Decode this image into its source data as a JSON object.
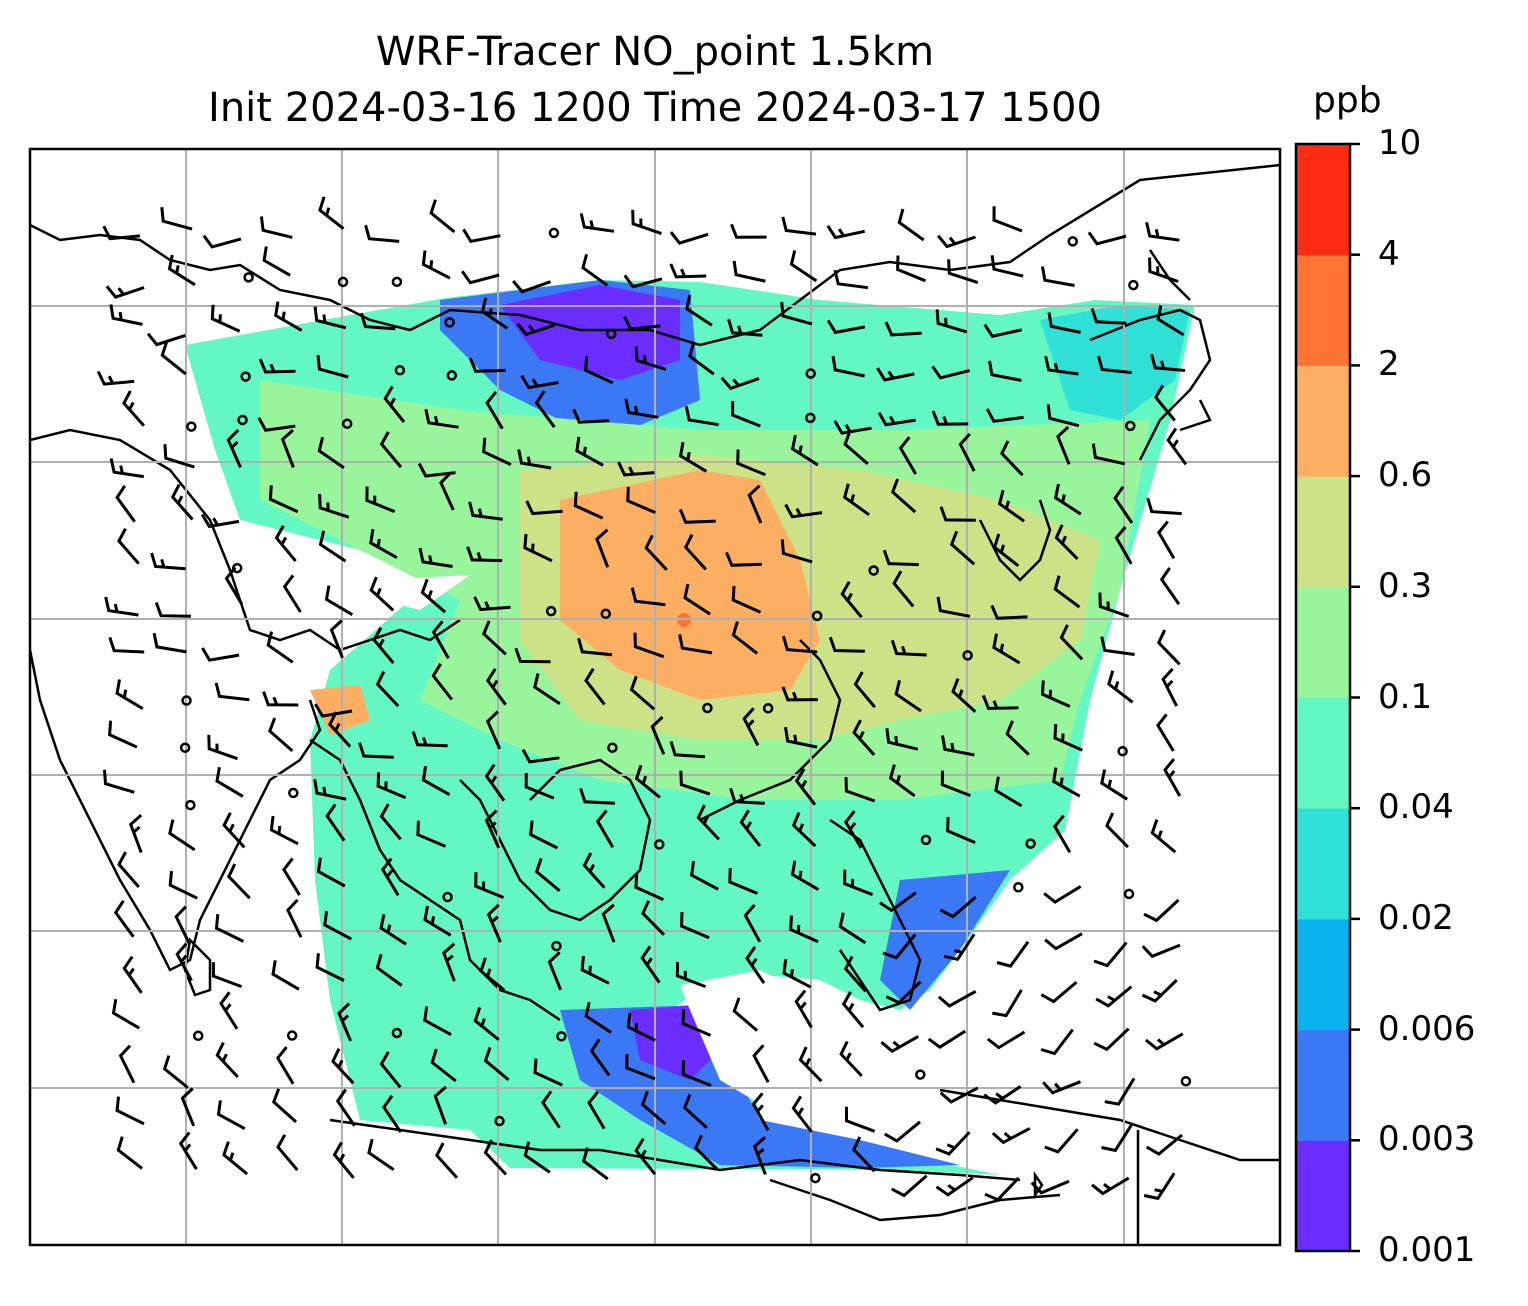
{
  "title": {
    "line1": "WRF-Tracer NO_point 1.5km",
    "line2": "Init 2024-03-16 1200 Time 2024-03-17 1500"
  },
  "colorbar": {
    "unit": "ppb",
    "levels": [
      "0.001",
      "0.003",
      "0.006",
      "0.02",
      "0.04",
      "0.1",
      "0.3",
      "0.6",
      "2",
      "4",
      "10"
    ],
    "colors": [
      "#6a2cff",
      "#3a78f5",
      "#0bb3ee",
      "#2fe0d6",
      "#63f7c4",
      "#99f59c",
      "#cde187",
      "#fcae62",
      "#ff7433",
      "#ff2c13"
    ]
  },
  "map": {
    "projection": "lat-lon",
    "gridlines": true,
    "coastlines": true,
    "variable": "NO tracer concentration at 1.5 km",
    "overlay": "wind barbs and calm markers"
  }
}
